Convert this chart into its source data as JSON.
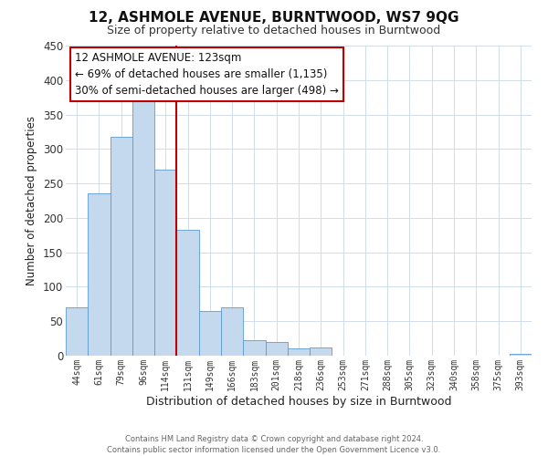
{
  "title": "12, ASHMOLE AVENUE, BURNTWOOD, WS7 9QG",
  "subtitle": "Size of property relative to detached houses in Burntwood",
  "xlabel": "Distribution of detached houses by size in Burntwood",
  "ylabel": "Number of detached properties",
  "footer_line1": "Contains HM Land Registry data © Crown copyright and database right 2024.",
  "footer_line2": "Contains public sector information licensed under the Open Government Licence v3.0.",
  "bar_labels": [
    "44sqm",
    "61sqm",
    "79sqm",
    "96sqm",
    "114sqm",
    "131sqm",
    "149sqm",
    "166sqm",
    "183sqm",
    "201sqm",
    "218sqm",
    "236sqm",
    "253sqm",
    "271sqm",
    "288sqm",
    "305sqm",
    "323sqm",
    "340sqm",
    "358sqm",
    "375sqm",
    "393sqm"
  ],
  "bar_values": [
    70,
    235,
    318,
    370,
    270,
    183,
    65,
    70,
    22,
    20,
    10,
    12,
    0,
    0,
    0,
    0,
    0,
    0,
    0,
    0,
    2
  ],
  "bar_color": "#c5d9ee",
  "bar_edge_color": "#5b9bd5",
  "ylim": [
    0,
    450
  ],
  "yticks": [
    0,
    50,
    100,
    150,
    200,
    250,
    300,
    350,
    400,
    450
  ],
  "vline_x_idx": 4,
  "vline_color": "#c00000",
  "annotation_title": "12 ASHMOLE AVENUE: 123sqm",
  "annotation_line1": "← 69% of detached houses are smaller (1,135)",
  "annotation_line2": "30% of semi-detached houses are larger (498) →",
  "annotation_box_color": "#c00000",
  "background_color": "#ffffff",
  "grid_color": "#d0dce8",
  "title_fontsize": 11,
  "subtitle_fontsize": 9
}
